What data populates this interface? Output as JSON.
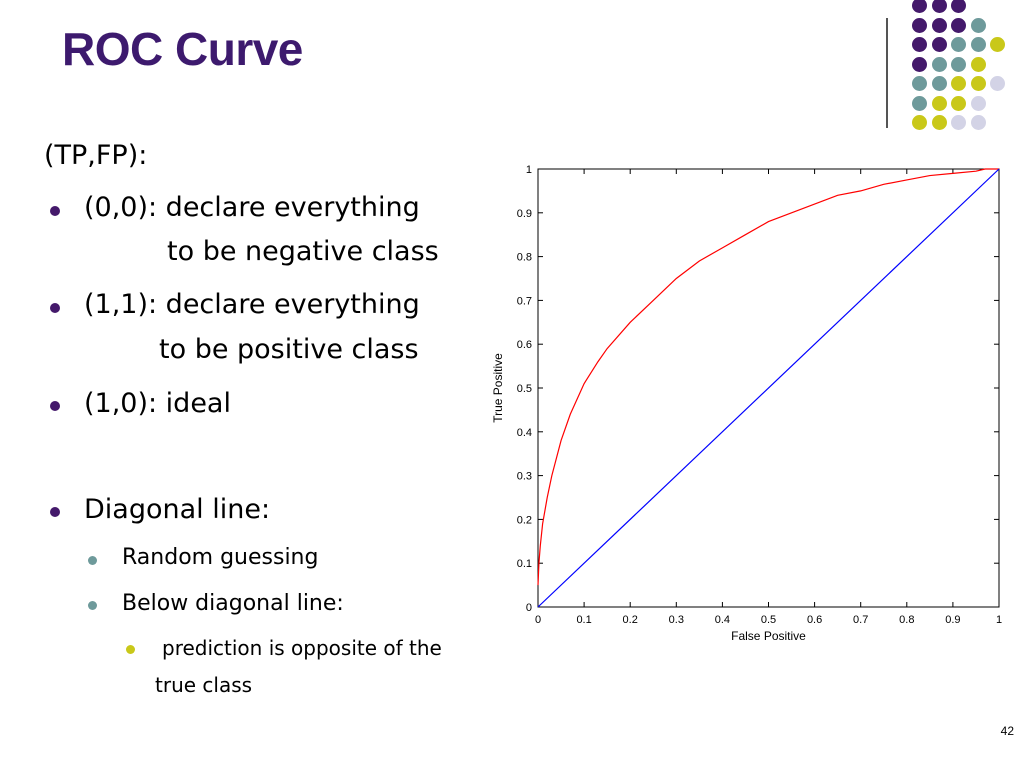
{
  "slide": {
    "title": "ROC Curve",
    "page_number": "42"
  },
  "content": {
    "heading": "(TP,FP):",
    "bullets": [
      {
        "line1": "(0,0): declare everything",
        "line2": "to be negative class"
      },
      {
        "line1": "(1,1): declare everything",
        "line2": "to be positive class"
      },
      {
        "line1": "(1,0): ideal"
      }
    ],
    "diagonal": {
      "label": "Diagonal line:",
      "subitems": [
        "Random guessing",
        "Below diagonal line:"
      ],
      "subsub": {
        "line1": "prediction is opposite of the",
        "line2": "true class"
      }
    }
  },
  "decoration": {
    "colors": {
      "purple": "#44196b",
      "teal": "#6e9a9b",
      "yellow": "#c9c819",
      "lavender": "#d3d3e6",
      "title": "#3d1a6e"
    }
  },
  "chart_data": {
    "type": "line",
    "xlabel": "False Positive",
    "ylabel": "True Positive",
    "xlim": [
      0,
      1
    ],
    "ylim": [
      0,
      1
    ],
    "xticks": [
      "0",
      "0.1",
      "0.2",
      "0.3",
      "0.4",
      "0.5",
      "0.6",
      "0.7",
      "0.8",
      "0.9",
      "1"
    ],
    "yticks": [
      "0",
      "0.1",
      "0.2",
      "0.3",
      "0.4",
      "0.5",
      "0.6",
      "0.7",
      "0.8",
      "0.9",
      "1"
    ],
    "grid": false,
    "series": [
      {
        "color": "#ff0000",
        "x": [
          0,
          0.002,
          0.005,
          0.01,
          0.02,
          0.03,
          0.05,
          0.07,
          0.1,
          0.13,
          0.15,
          0.2,
          0.25,
          0.3,
          0.35,
          0.4,
          0.45,
          0.5,
          0.55,
          0.6,
          0.65,
          0.7,
          0.75,
          0.8,
          0.85,
          0.9,
          0.95,
          0.97,
          1.0
        ],
        "y": [
          0.05,
          0.1,
          0.14,
          0.19,
          0.25,
          0.3,
          0.38,
          0.44,
          0.51,
          0.56,
          0.59,
          0.65,
          0.7,
          0.75,
          0.79,
          0.82,
          0.85,
          0.88,
          0.9,
          0.92,
          0.94,
          0.95,
          0.965,
          0.975,
          0.985,
          0.99,
          0.995,
          1.0,
          1.0
        ]
      },
      {
        "color": "#0000ff",
        "x": [
          0,
          1
        ],
        "y": [
          0,
          1
        ]
      }
    ]
  }
}
